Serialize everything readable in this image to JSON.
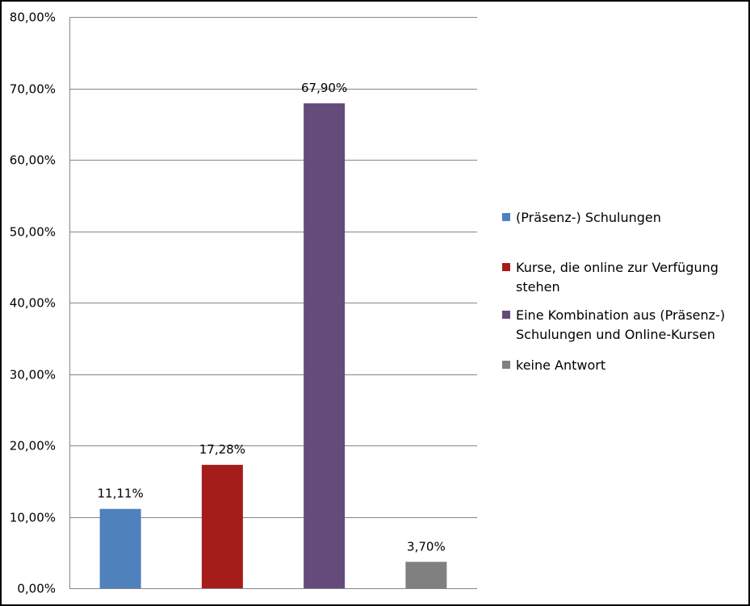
{
  "chart_data": {
    "type": "bar",
    "categories": [
      "(Präsenz-) Schulungen",
      "Kurse, die online zur Verfügung stehen",
      "Eine Kombination aus (Präsenz-) Schulungen und Online-Kursen",
      "keine Antwort"
    ],
    "values": [
      11.11,
      17.28,
      67.9,
      3.7
    ],
    "data_labels": [
      "11,11%",
      "17,28%",
      "67,90%",
      "3,70%"
    ],
    "colors": [
      "#4f81bd",
      "#a41d1a",
      "#644b7c",
      "#808080"
    ],
    "y_ticks": [
      0,
      10,
      20,
      30,
      40,
      50,
      60,
      70,
      80
    ],
    "y_tick_labels": [
      "0,00%",
      "10,00%",
      "20,00%",
      "30,00%",
      "40,00%",
      "50,00%",
      "60,00%",
      "70,00%",
      "80,00%"
    ],
    "ylim": [
      0,
      80
    ],
    "grid": true,
    "legend_position": "right",
    "title": "",
    "xlabel": "",
    "ylabel": ""
  }
}
